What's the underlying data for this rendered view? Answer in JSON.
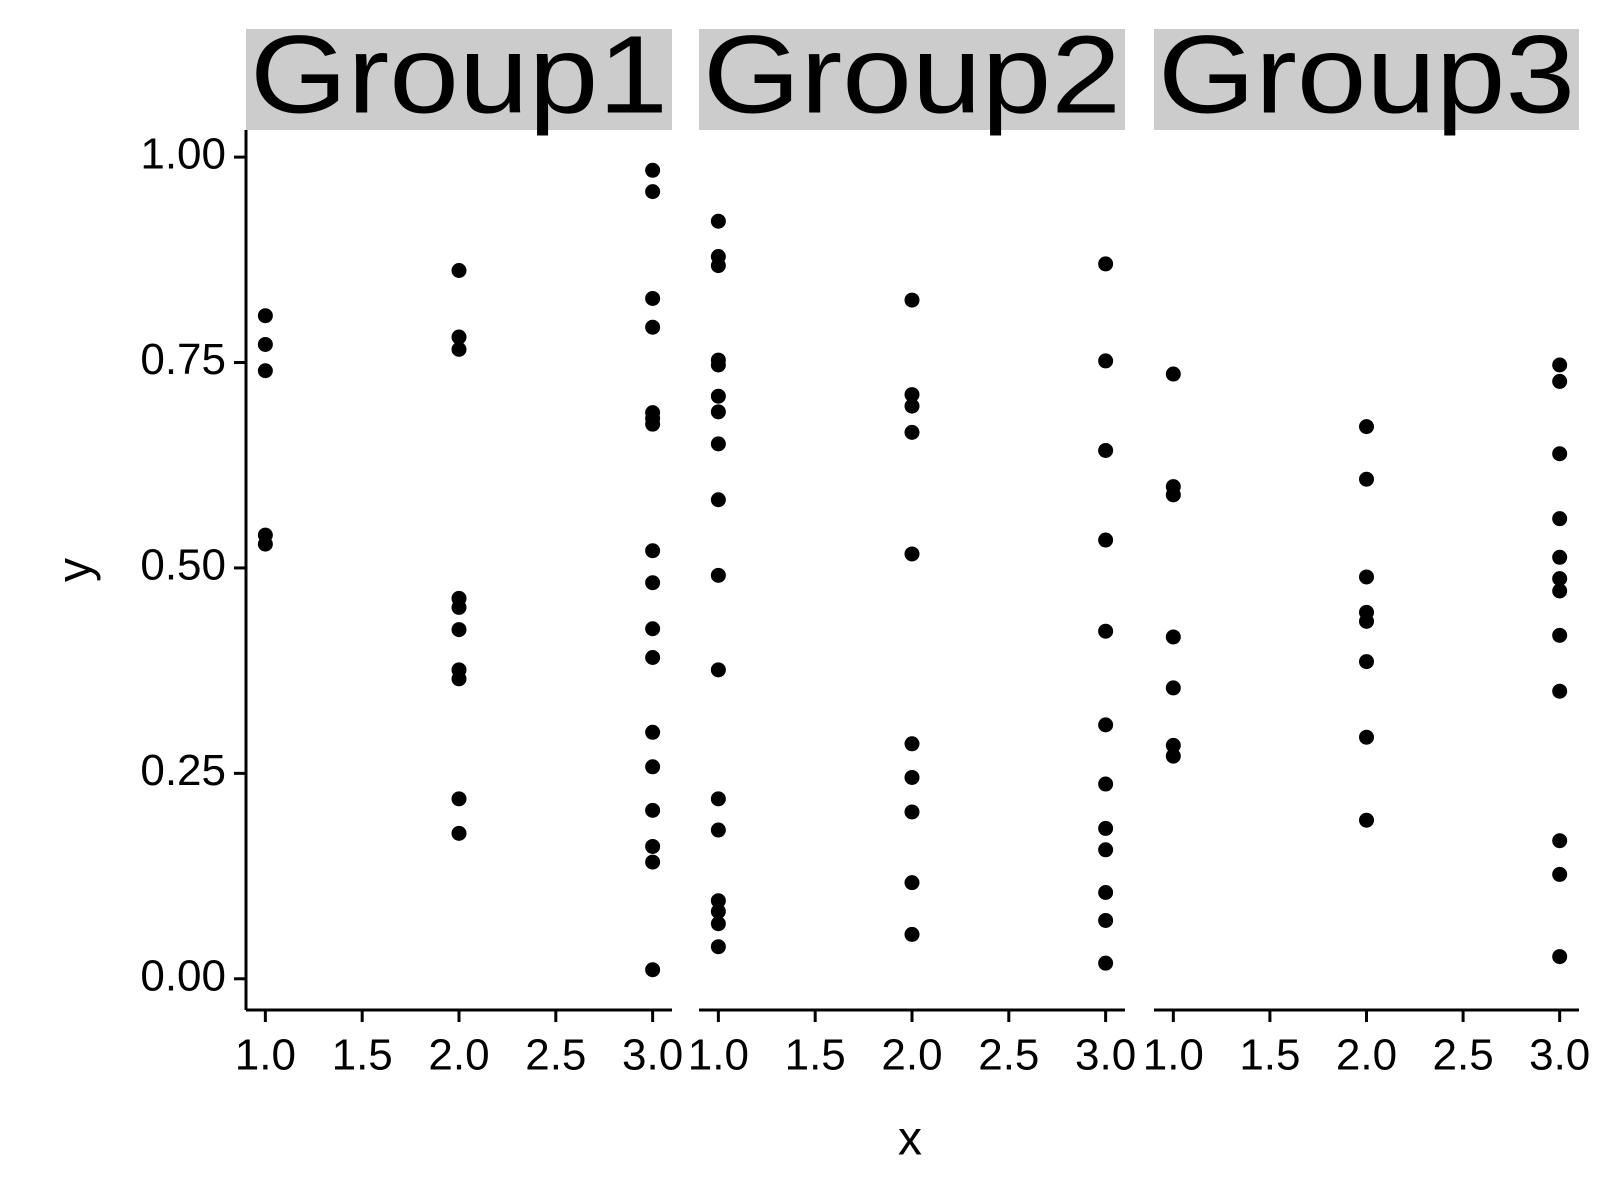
{
  "chart_data": {
    "type": "scatter",
    "xlabel": "x",
    "ylabel": "y",
    "color": "#000000",
    "strip_color": "#cccccc",
    "xlim": [
      0.9,
      3.1
    ],
    "ylim": [
      -0.038,
      1.033
    ],
    "xticks": [
      {
        "value": 1,
        "label": "1.0"
      },
      {
        "value": 1.5,
        "label": "1.5"
      },
      {
        "value": 2,
        "label": "2.0"
      },
      {
        "value": 2.5,
        "label": "2.5"
      },
      {
        "value": 3,
        "label": "3.0"
      }
    ],
    "yticks": [
      {
        "value": 0,
        "label": "0.00"
      },
      {
        "value": 0.25,
        "label": "0.25"
      },
      {
        "value": 0.5,
        "label": "0.50"
      },
      {
        "value": 0.75,
        "label": "0.75"
      },
      {
        "value": 1,
        "label": "1.00"
      }
    ],
    "facets": [
      {
        "title": "Group1",
        "x": [
          1,
          1,
          1,
          1,
          1,
          2,
          2,
          2,
          2,
          2,
          2,
          2,
          2,
          2,
          2,
          3,
          3,
          3,
          3,
          3,
          3,
          3,
          3,
          3,
          3,
          3,
          3,
          3,
          3,
          3,
          3,
          3
        ],
        "y": [
          0.807,
          0.772,
          0.74,
          0.54,
          0.529,
          0.862,
          0.781,
          0.766,
          0.463,
          0.452,
          0.425,
          0.376,
          0.365,
          0.219,
          0.177,
          0.984,
          0.958,
          0.828,
          0.793,
          0.689,
          0.682,
          0.675,
          0.521,
          0.482,
          0.426,
          0.391,
          0.3,
          0.258,
          0.205,
          0.161,
          0.142,
          0.011
        ]
      },
      {
        "title": "Group2",
        "x": [
          1,
          1,
          1,
          1,
          1,
          1,
          1,
          1,
          1,
          1,
          1,
          1,
          1,
          1,
          1,
          1,
          1,
          2,
          2,
          2,
          2,
          2,
          2,
          2,
          2,
          2,
          2,
          3,
          3,
          3,
          3,
          3,
          3,
          3,
          3,
          3,
          3,
          3,
          3
        ],
        "y": [
          0.922,
          0.879,
          0.868,
          0.753,
          0.747,
          0.709,
          0.69,
          0.651,
          0.583,
          0.491,
          0.376,
          0.219,
          0.181,
          0.095,
          0.082,
          0.067,
          0.039,
          0.826,
          0.711,
          0.697,
          0.665,
          0.517,
          0.286,
          0.245,
          0.203,
          0.117,
          0.054,
          0.87,
          0.752,
          0.643,
          0.534,
          0.423,
          0.309,
          0.237,
          0.183,
          0.157,
          0.105,
          0.071,
          0.019
        ]
      },
      {
        "title": "Group3",
        "x": [
          1,
          1,
          1,
          1,
          1,
          1,
          1,
          2,
          2,
          2,
          2,
          2,
          2,
          2,
          2,
          3,
          3,
          3,
          3,
          3,
          3,
          3,
          3,
          3,
          3,
          3,
          3
        ],
        "y": [
          0.736,
          0.599,
          0.589,
          0.416,
          0.354,
          0.284,
          0.271,
          0.672,
          0.608,
          0.489,
          0.446,
          0.435,
          0.386,
          0.294,
          0.193,
          0.747,
          0.727,
          0.639,
          0.56,
          0.513,
          0.487,
          0.472,
          0.418,
          0.35,
          0.168,
          0.127,
          0.027
        ]
      }
    ]
  }
}
